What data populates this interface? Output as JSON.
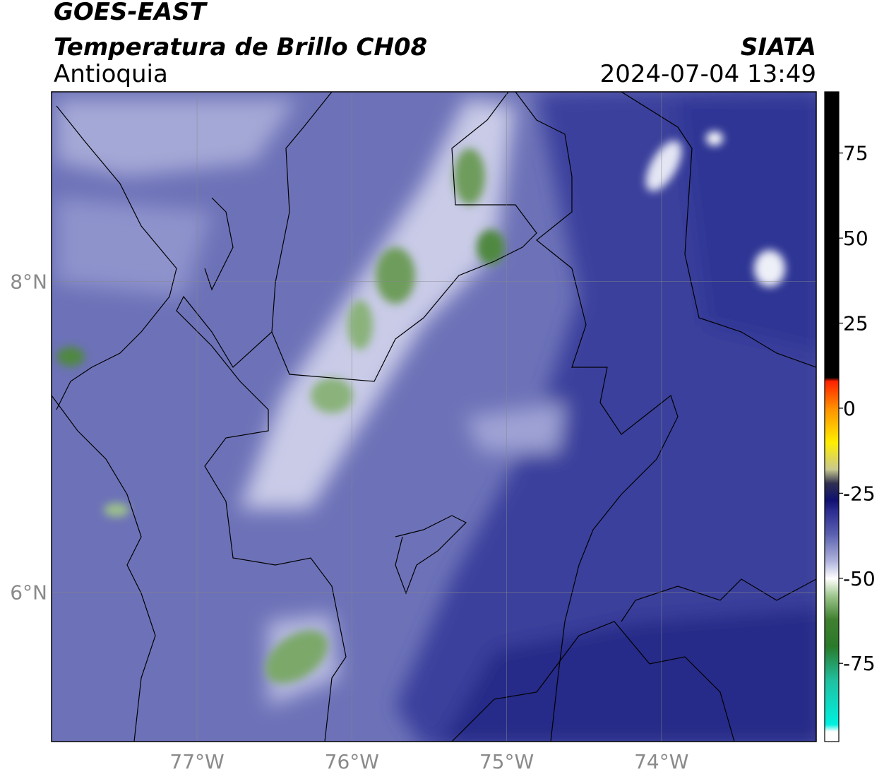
{
  "map": {
    "title": "GOES-EAST",
    "subtitle": "Temperatura de Brillo CH08",
    "region": "Antioquia",
    "source": "SIATA",
    "timestamp": "2024-07-04 13:49",
    "lon_range": [
      -77.94,
      -73.0
    ],
    "lat_range": [
      5.04,
      9.22
    ],
    "lon_ticks": [
      {
        "value": -77,
        "label": "77°W"
      },
      {
        "value": -76,
        "label": "76°W"
      },
      {
        "value": -75,
        "label": "75°W"
      },
      {
        "value": -74,
        "label": "74°W"
      }
    ],
    "lat_ticks": [
      {
        "value": 8,
        "label": "8°N"
      },
      {
        "value": 6,
        "label": "6°N"
      }
    ],
    "colorbar": {
      "range": [
        -98,
        93
      ],
      "ticks": [
        75,
        50,
        25,
        0,
        -25,
        -50,
        -75
      ],
      "stops": [
        {
          "value": 93,
          "color": "#000000"
        },
        {
          "value": 9,
          "color": "#000000"
        },
        {
          "value": 8,
          "color": "#ff2000"
        },
        {
          "value": 0,
          "color": "#ff9000"
        },
        {
          "value": -10,
          "color": "#ffee00"
        },
        {
          "value": -18,
          "color": "#c8c890"
        },
        {
          "value": -22,
          "color": "#303050"
        },
        {
          "value": -27,
          "color": "#101070"
        },
        {
          "value": -30,
          "color": "#2a2a90"
        },
        {
          "value": -37,
          "color": "#5a60b0"
        },
        {
          "value": -45,
          "color": "#b0b4dc"
        },
        {
          "value": -50,
          "color": "#ffffff"
        },
        {
          "value": -55,
          "color": "#a0c890"
        },
        {
          "value": -62,
          "color": "#408030"
        },
        {
          "value": -70,
          "color": "#2a7a2a"
        },
        {
          "value": -80,
          "color": "#20c0a0"
        },
        {
          "value": -93,
          "color": "#00f0e0"
        },
        {
          "value": -95,
          "color": "#ffffff"
        },
        {
          "value": -98,
          "color": "#ffffff"
        }
      ]
    }
  }
}
